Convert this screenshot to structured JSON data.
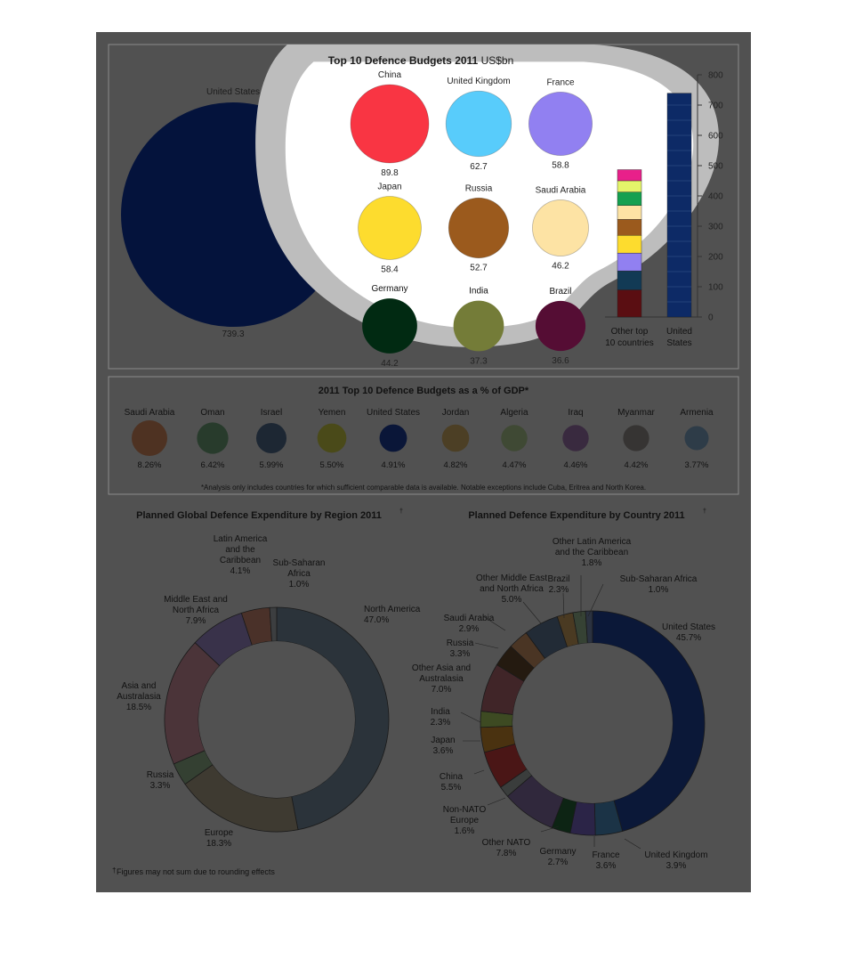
{
  "panel1": {
    "title_bold": "Top 10 Defence Budgets 2011",
    "title_unit": "US$bn",
    "big_circle": {
      "label": "United States",
      "value": "739.3",
      "raw": 739.3,
      "color": "#0d47b0"
    },
    "circles": [
      {
        "label": "China",
        "value": "89.8",
        "raw": 89.8,
        "color": "#f93543"
      },
      {
        "label": "United Kingdom",
        "value": "62.7",
        "raw": 62.7,
        "color": "#58ccfb"
      },
      {
        "label": "France",
        "value": "58.8",
        "raw": 58.8,
        "color": "#9180f1"
      },
      {
        "label": "Japan",
        "value": "58.4",
        "raw": 58.4,
        "color": "#fddc2e"
      },
      {
        "label": "Russia",
        "value": "52.7",
        "raw": 52.7,
        "color": "#9b5a1d"
      },
      {
        "label": "Saudi Arabia",
        "value": "46.2",
        "raw": 46.2,
        "color": "#fde3a4"
      },
      {
        "label": "Germany",
        "value": "44.2",
        "raw": 44.2,
        "color": "#0a5a2e"
      },
      {
        "label": "India",
        "value": "37.3",
        "raw": 37.3,
        "color": "#e4f56a"
      },
      {
        "label": "Brazil",
        "value": "36.6",
        "raw": 36.6,
        "color": "#a01a60"
      }
    ]
  },
  "chart_data": [
    {
      "type": "bar",
      "categories": [
        "Other top 10 countries",
        "United States"
      ],
      "category_labels": [
        [
          "Other top",
          "10 countries"
        ],
        [
          "United",
          "States"
        ]
      ],
      "ylim": [
        0,
        800
      ],
      "yticks": [
        0,
        100,
        200,
        300,
        400,
        500,
        600,
        700,
        800
      ],
      "grid": false,
      "stacks": [
        [
          {
            "label": "China",
            "value": 89.8,
            "color": "#f93543"
          },
          {
            "label": "United Kingdom",
            "value": 62.7,
            "color": "#58ccfb"
          },
          {
            "label": "France",
            "value": 58.8,
            "color": "#9180f1"
          },
          {
            "label": "Japan",
            "value": 58.4,
            "color": "#fddc2e"
          },
          {
            "label": "Russia",
            "value": 52.7,
            "color": "#9b5a1d"
          },
          {
            "label": "Saudi Arabia",
            "value": 46.2,
            "color": "#fde3a4"
          },
          {
            "label": "Germany",
            "value": 44.2,
            "color": "#14a050"
          },
          {
            "label": "India",
            "value": 37.3,
            "color": "#e4f56a"
          },
          {
            "label": "Brazil",
            "value": 36.6,
            "color": "#e8208a"
          }
        ],
        [
          {
            "label": "United States",
            "value": 739.3,
            "color": "#0d2a66"
          }
        ]
      ]
    },
    {
      "type": "bar",
      "title": "2011 Top 10 Defence Budgets as a % of GDP*",
      "categories": [
        "Saudi Arabia",
        "Oman",
        "Israel",
        "Yemen",
        "United States",
        "Jordan",
        "Algeria",
        "Iraq",
        "Myanmar",
        "Armenia"
      ],
      "values": [
        8.26,
        6.42,
        5.99,
        5.5,
        4.91,
        4.82,
        4.47,
        4.46,
        4.42,
        3.77
      ],
      "labels": [
        "8.26%",
        "6.42%",
        "5.99%",
        "5.50%",
        "4.91%",
        "4.82%",
        "4.47%",
        "4.46%",
        "4.42%",
        "3.77%"
      ],
      "colors": [
        "#4e3222",
        "#283b2c",
        "#1d2733",
        "#4a4a19",
        "#0a1638",
        "#4c3f25",
        "#3f4934",
        "#392a3f",
        "#363433",
        "#2e3c48"
      ],
      "footnote": "*Analysis only includes countries for which sufficient comparable data is available. Notable exceptions include Cuba, Eritrea and North Korea."
    },
    {
      "type": "pie",
      "title": "Planned Global Defence Expenditure by Region 2011",
      "title_mark": "†",
      "slices": [
        {
          "label": "North America",
          "value": 47.0,
          "pct": "47.0%",
          "color": "#2b333a"
        },
        {
          "label": "Europe",
          "value": 18.3,
          "pct": "18.3%",
          "color": "#3e3a31"
        },
        {
          "label": "Russia",
          "value": 3.3,
          "pct": "3.3%",
          "color": "#344032"
        },
        {
          "label": "Asia and Australasia",
          "value": 18.5,
          "pct": "18.5%",
          "color": "#4b3439"
        },
        {
          "label": "Middle East and North Africa",
          "value": 7.9,
          "pct": "7.9%",
          "color": "#39324a"
        },
        {
          "label": "Latin America and the Caribbean",
          "value": 4.1,
          "pct": "4.1%",
          "color": "#4a3129"
        },
        {
          "label": "Sub-Saharan Africa",
          "value": 1.0,
          "pct": "1.0%",
          "color": "#3c3e40"
        }
      ],
      "slice_labels": [
        [
          "North America",
          "47.0%"
        ],
        [
          "Europe",
          "18.3%"
        ],
        [
          "Russia",
          "3.3%"
        ],
        [
          "Asia and",
          "Australasia",
          "18.5%"
        ],
        [
          "Middle East and",
          "North Africa",
          "7.9%"
        ],
        [
          "Latin America",
          "and the",
          "Caribbean",
          "4.1%"
        ],
        [
          "Sub-Saharan",
          "Africa",
          "1.0%"
        ]
      ],
      "footnote_mark": "†",
      "footnote": "Figures may not sum due to rounding effects"
    },
    {
      "type": "pie",
      "title": "Planned Defence Expenditure by Country 2011",
      "title_mark": "†",
      "slices": [
        {
          "label": "United States",
          "value": 45.7,
          "pct": "45.7%",
          "color": "#0b1838"
        },
        {
          "label": "United Kingdom",
          "value": 3.9,
          "pct": "3.9%",
          "color": "#1b3346"
        },
        {
          "label": "France",
          "value": 3.6,
          "pct": "3.6%",
          "color": "#2b2447"
        },
        {
          "label": "Germany",
          "value": 2.7,
          "pct": "2.7%",
          "color": "#0d2414"
        },
        {
          "label": "Other NATO",
          "value": 7.8,
          "pct": "7.8%",
          "color": "#30283c"
        },
        {
          "label": "Non-NATO Europe",
          "value": 1.6,
          "pct": "1.6%",
          "color": "#3a3d3c"
        },
        {
          "label": "China",
          "value": 5.5,
          "pct": "5.5%",
          "color": "#4a1616"
        },
        {
          "label": "Japan",
          "value": 3.6,
          "pct": "3.6%",
          "color": "#4a3210"
        },
        {
          "label": "India",
          "value": 2.3,
          "pct": "2.3%",
          "color": "#3d4a22"
        },
        {
          "label": "Other Asia and Australasia",
          "value": 7.0,
          "pct": "7.0%",
          "color": "#402528"
        },
        {
          "label": "Russia",
          "value": 3.3,
          "pct": "3.3%",
          "color": "#241a10"
        },
        {
          "label": "Saudi Arabia",
          "value": 2.9,
          "pct": "2.9%",
          "color": "#4a3524"
        },
        {
          "label": "Other Middle East and North Africa",
          "value": 5.0,
          "pct": "5.0%",
          "color": "#222b36"
        },
        {
          "label": "Brazil",
          "value": 2.3,
          "pct": "2.3%",
          "color": "#4a3a22"
        },
        {
          "label": "Other Latin America and the Caribbean",
          "value": 1.8,
          "pct": "1.8%",
          "color": "#364234"
        },
        {
          "label": "Sub-Saharan Africa",
          "value": 1.0,
          "pct": "1.0%",
          "color": "#2b3240"
        }
      ],
      "slice_labels": [
        [
          "United States",
          "45.7%"
        ],
        [
          "United Kingdom",
          "3.9%"
        ],
        [
          "France",
          "3.6%"
        ],
        [
          "Germany",
          "2.7%"
        ],
        [
          "Other NATO",
          "7.8%"
        ],
        [
          "Non-NATO",
          "Europe",
          "1.6%"
        ],
        [
          "China",
          "5.5%"
        ],
        [
          "Japan",
          "3.6%"
        ],
        [
          "India",
          "2.3%"
        ],
        [
          "Other Asia and",
          "Australasia",
          "7.0%"
        ],
        [
          "Russia",
          "3.3%"
        ],
        [
          "Saudi Arabia",
          "2.9%"
        ],
        [
          "Other Middle East",
          "and North Africa",
          "5.0%"
        ],
        [
          "Brazil",
          "2.3%"
        ],
        [
          "Other Latin America",
          "and the Caribbean",
          "1.8%"
        ],
        [
          "Sub-Saharan Africa",
          "1.0%"
        ]
      ]
    }
  ]
}
